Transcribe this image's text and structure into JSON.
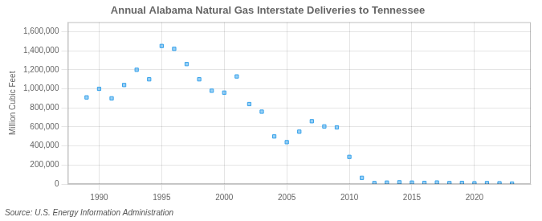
{
  "chart_data": {
    "type": "scatter",
    "title": "Annual Alabama Natural Gas Interstate Deliveries to Tennessee",
    "ylabel": "Million Cubic Feet",
    "annotations": [
      "Source: U.S. Energy Information Administration"
    ],
    "x": [
      1989,
      1990,
      1991,
      1992,
      1993,
      1994,
      1995,
      1996,
      1997,
      1998,
      1999,
      2000,
      2001,
      2002,
      2003,
      2004,
      2005,
      2006,
      2007,
      2008,
      2009,
      2010,
      2011,
      2012,
      2013,
      2014,
      2015,
      2016,
      2017,
      2018,
      2019,
      2020,
      2021,
      2022,
      2023
    ],
    "values": [
      910000,
      1000000,
      900000,
      1040000,
      1200000,
      1100000,
      1450000,
      1420000,
      1260000,
      1100000,
      980000,
      960000,
      1130000,
      840000,
      760000,
      500000,
      440000,
      550000,
      660000,
      605000,
      595000,
      285000,
      65000,
      10000,
      15000,
      18000,
      15000,
      12000,
      16000,
      10000,
      12000,
      8000,
      10000,
      8000,
      5000
    ],
    "xlim": [
      1987.5,
      2024.5
    ],
    "xticks": [
      1990,
      1995,
      2000,
      2005,
      2010,
      2015,
      2020
    ],
    "ylim": [
      0,
      1700000
    ],
    "yticks": [
      0,
      {
        "value": 200000,
        "label": "200,000"
      },
      {
        "value": 400000,
        "label": "400,000"
      },
      {
        "value": 600000,
        "label": "600,000"
      },
      {
        "value": 800000,
        "label": "800,000"
      },
      {
        "value": 1000000,
        "label": "1,000,000"
      },
      {
        "value": 1200000,
        "label": "1,200,000"
      },
      {
        "value": 1400000,
        "label": "1,400,000"
      },
      {
        "value": 1600000,
        "label": "1,600,000"
      }
    ],
    "marker": "square",
    "grid": true
  }
}
